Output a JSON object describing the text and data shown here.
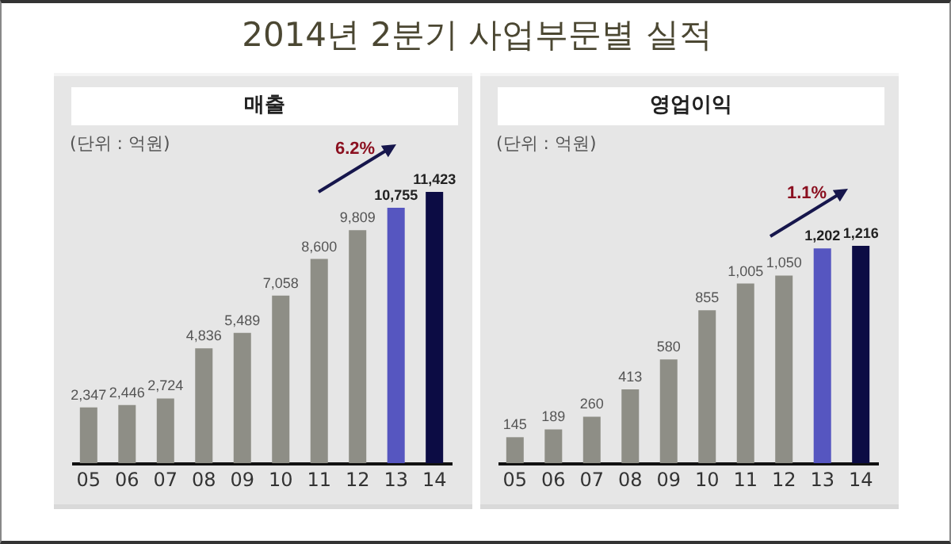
{
  "chart_data": [
    {
      "type": "bar",
      "title": "2014년 2분기 사업부문별 실적",
      "subtitle": "매출",
      "annotations": [
        "(단위 : 억원)",
        "6.2%"
      ],
      "categories": [
        "05",
        "06",
        "07",
        "08",
        "09",
        "10",
        "11",
        "12",
        "13",
        "14"
      ],
      "values": [
        2347,
        2446,
        2724,
        4836,
        5489,
        7058,
        8600,
        9809,
        10755,
        11423
      ],
      "value_labels": [
        "2,347",
        "2,446",
        "2,724",
        "4,836",
        "5,489",
        "7,058",
        "8,600",
        "9,809",
        "10,755",
        "11,423"
      ],
      "colors": [
        "#8e8e86",
        "#8e8e86",
        "#8e8e86",
        "#8e8e86",
        "#8e8e86",
        "#8e8e86",
        "#8e8e86",
        "#8e8e86",
        "#5656c0",
        "#0c0c44"
      ]
    },
    {
      "type": "bar",
      "subtitle": "영업이익",
      "annotations": [
        "(단위 : 억원)",
        "1.1%"
      ],
      "categories": [
        "05",
        "06",
        "07",
        "08",
        "09",
        "10",
        "11",
        "12",
        "13",
        "14"
      ],
      "values": [
        145,
        189,
        260,
        413,
        580,
        855,
        1005,
        1050,
        1202,
        1216
      ],
      "value_labels": [
        "145",
        "189",
        "260",
        "413",
        "580",
        "855",
        "1,005",
        "1,050",
        "1,202",
        "1,216"
      ],
      "colors": [
        "#8e8e86",
        "#8e8e86",
        "#8e8e86",
        "#8e8e86",
        "#8e8e86",
        "#8e8e86",
        "#8e8e86",
        "#8e8e86",
        "#5656c0",
        "#0c0c44"
      ]
    }
  ]
}
